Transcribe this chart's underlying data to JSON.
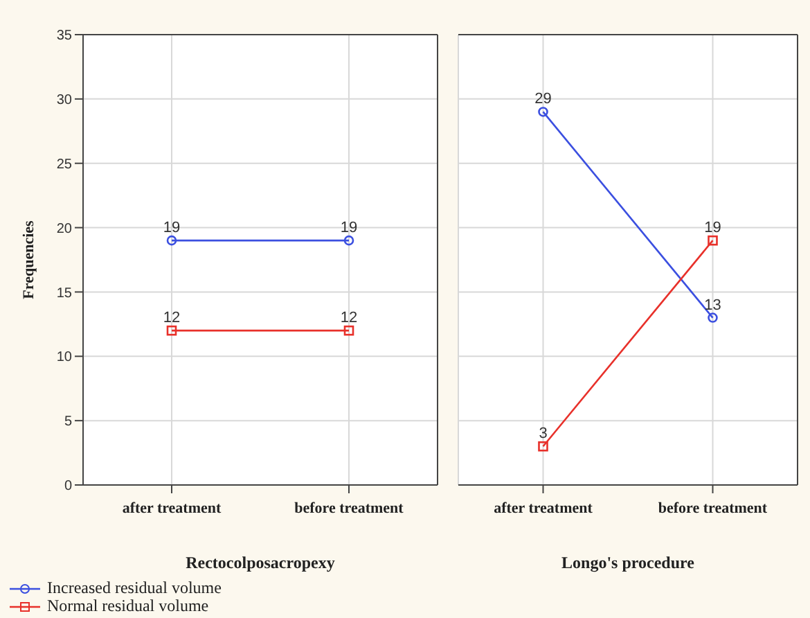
{
  "chart_data": [
    {
      "type": "line",
      "xlabel": "Rectocolposacropexy",
      "ylabel": "Frequencies",
      "categories": [
        "after treatment",
        "before treatment"
      ],
      "ylim": [
        0,
        35
      ],
      "yticks": [
        0,
        5,
        10,
        15,
        20,
        25,
        30,
        35
      ],
      "grid": true,
      "data_labels": true,
      "legend": "bottom left",
      "series": [
        {
          "name": "Increased residual volume",
          "color": "#3b4fe0",
          "marker": "circle",
          "values": [
            19,
            19
          ]
        },
        {
          "name": "Normal residual volume",
          "color": "#e8302a",
          "marker": "square",
          "values": [
            12,
            12
          ]
        }
      ]
    },
    {
      "type": "line",
      "xlabel": "Longo's procedure",
      "categories": [
        "after treatment",
        "before treatment"
      ],
      "ylim": [
        0,
        35
      ],
      "yticks": [
        0,
        5,
        10,
        15,
        20,
        25,
        30,
        35
      ],
      "grid": true,
      "data_labels": true,
      "tick_labels": "x",
      "series": [
        {
          "color": "#3b4fe0",
          "marker": "circle",
          "values": [
            29,
            13
          ]
        },
        {
          "color": "#e8302a",
          "marker": "square",
          "values": [
            3,
            19
          ]
        }
      ]
    }
  ]
}
